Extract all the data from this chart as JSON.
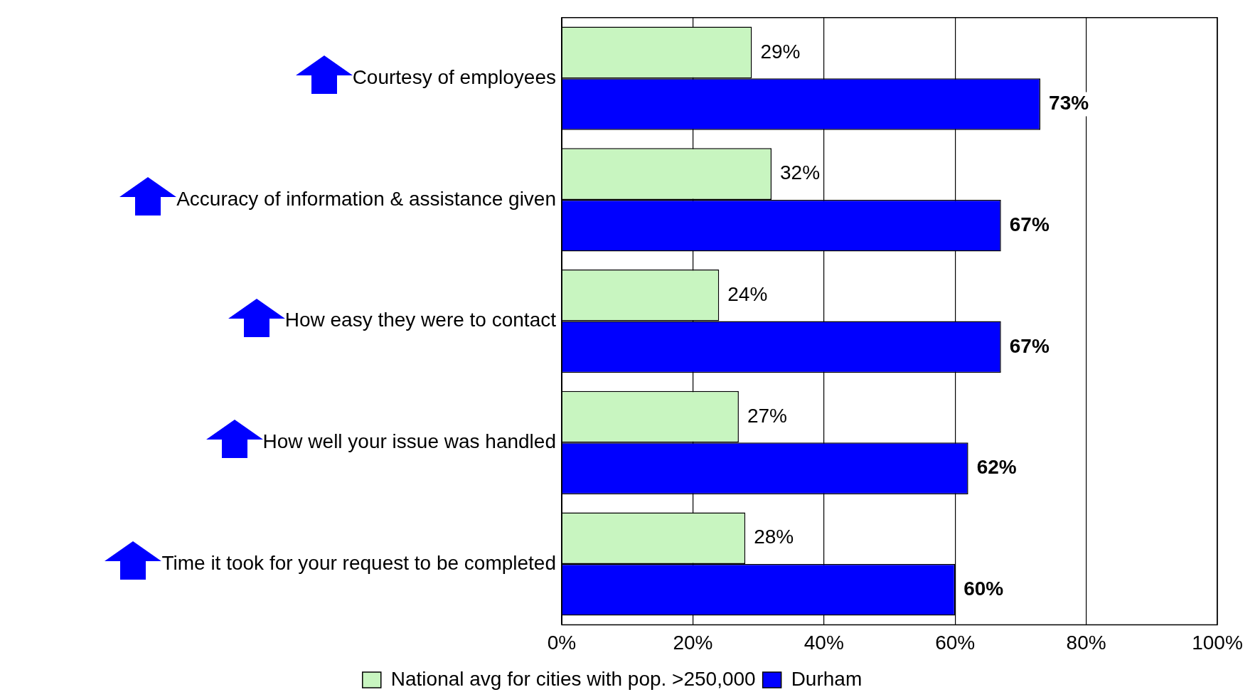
{
  "chart_data": {
    "type": "bar",
    "orientation": "horizontal",
    "categories": [
      "Courtesy of employees",
      "Accuracy of information & assistance given",
      "How easy they were to contact",
      "How well your issue was handled",
      "Time it took for your request to be completed"
    ],
    "series": [
      {
        "name": "National avg for cities with pop. >250,000",
        "color": "#c8f5c0",
        "values": [
          29,
          32,
          24,
          27,
          28
        ],
        "value_labels": [
          "29%",
          "32%",
          "24%",
          "27%",
          "28%"
        ]
      },
      {
        "name": "Durham",
        "color": "#0000ff",
        "values": [
          73,
          67,
          67,
          62,
          60
        ],
        "value_labels": [
          "73%",
          "67%",
          "67%",
          "62%",
          "60%"
        ]
      }
    ],
    "xlim": [
      0,
      100
    ],
    "xticks": [
      {
        "value": 0,
        "label": "0%"
      },
      {
        "value": 20,
        "label": "20%"
      },
      {
        "value": 40,
        "label": "40%"
      },
      {
        "value": 60,
        "label": "60%"
      },
      {
        "value": 80,
        "label": "80%"
      },
      {
        "value": 100,
        "label": "100%"
      }
    ],
    "grid": "x",
    "legend": "bottom"
  }
}
